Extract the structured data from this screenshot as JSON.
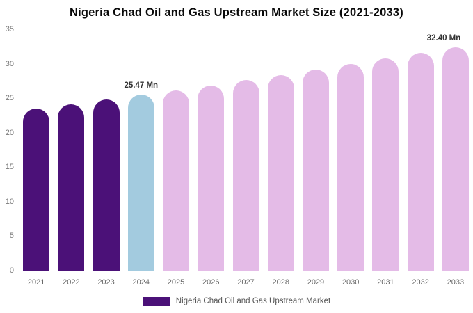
{
  "title": "Nigeria Chad Oil and Gas Upstream Market Size (2021-2033)",
  "legend": {
    "label": "Nigeria Chad Oil and Gas Upstream Market",
    "swatch_color": "#4B1178"
  },
  "colors": {
    "historical": "#4B1178",
    "current": "#A3CBDF",
    "forecast": "#E4BBE7",
    "axis_line": "#d9d9d9"
  },
  "chart_data": {
    "type": "bar",
    "title": "Nigeria Chad Oil and Gas Upstream Market Size (2021-2033)",
    "categories": [
      "2021",
      "2022",
      "2023",
      "2024",
      "2025",
      "2026",
      "2027",
      "2028",
      "2029",
      "2030",
      "2031",
      "2032",
      "2033"
    ],
    "values": [
      23.51,
      24.15,
      24.8,
      25.47,
      26.16,
      26.87,
      27.6,
      28.35,
      29.12,
      29.91,
      30.72,
      31.55,
      32.4
    ],
    "groups": [
      "historical",
      "historical",
      "historical",
      "current",
      "forecast",
      "forecast",
      "forecast",
      "forecast",
      "forecast",
      "forecast",
      "forecast",
      "forecast",
      "forecast"
    ],
    "point_labels": {
      "2024": "25.47 Mn",
      "2033": "32.40 Mn"
    },
    "xlabel": "",
    "ylabel": "",
    "ylim": [
      0,
      35
    ],
    "yticks": [
      0,
      5,
      10,
      15,
      20,
      25,
      30,
      35
    ],
    "grid": false,
    "legend_position": "bottom",
    "unit": "Mn"
  }
}
